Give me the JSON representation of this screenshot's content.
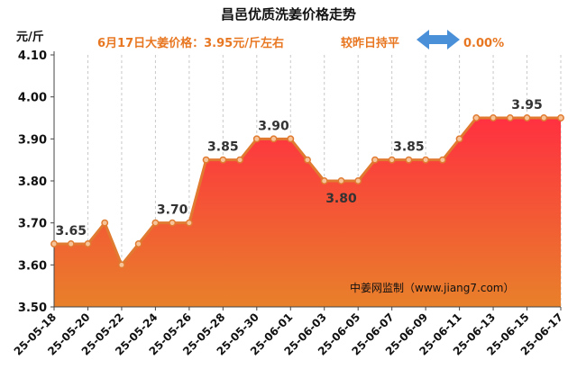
{
  "title": "昌邑优质洗姜价格走势",
  "subtitle_price": "6月17日大姜价格：3.95元/斤左右",
  "subtitle_compare": "较昨日持平",
  "change_text": "0.00%",
  "unit_label": "元/斤",
  "watermark": "中姜网监制（www.jiang7.com）",
  "colors": {
    "line": "#e07a30",
    "fill_top": "#ff3040",
    "fill_bottom": "#e8802a",
    "subtitle": "#e87722",
    "arrow": "#4a90d9"
  },
  "arrow_icon": "double-arrow-icon",
  "chart_data": {
    "type": "area",
    "title": "昌邑优质洗姜价格走势",
    "ylabel": "元/斤",
    "ylim": [
      3.5,
      4.1
    ],
    "yticks": [
      "3.50",
      "3.60",
      "3.70",
      "3.80",
      "3.90",
      "4.00",
      "4.10"
    ],
    "grid": "x-dashed",
    "x": [
      "25-05-18",
      "25-05-19",
      "25-05-20",
      "25-05-21",
      "25-05-22",
      "25-05-23",
      "25-05-24",
      "25-05-25",
      "25-05-26",
      "25-05-27",
      "25-05-28",
      "25-05-29",
      "25-05-30",
      "25-05-31",
      "25-06-01",
      "25-06-02",
      "25-06-03",
      "25-06-04",
      "25-06-05",
      "25-06-06",
      "25-06-07",
      "25-06-08",
      "25-06-09",
      "25-06-10",
      "25-06-11",
      "25-06-12",
      "25-06-13",
      "25-06-14",
      "25-06-15",
      "25-06-16",
      "25-06-17"
    ],
    "xtick_labels": [
      "25-05-18",
      "25-05-20",
      "25-05-22",
      "25-05-24",
      "25-05-26",
      "25-05-28",
      "25-05-30",
      "25-06-01",
      "25-06-03",
      "25-06-05",
      "25-06-07",
      "25-06-09",
      "25-06-11",
      "25-06-13",
      "25-06-15",
      "25-06-17"
    ],
    "values": [
      3.65,
      3.65,
      3.65,
      3.7,
      3.6,
      3.65,
      3.7,
      3.7,
      3.7,
      3.85,
      3.85,
      3.85,
      3.9,
      3.9,
      3.9,
      3.85,
      3.8,
      3.8,
      3.8,
      3.85,
      3.85,
      3.85,
      3.85,
      3.85,
      3.9,
      3.95,
      3.95,
      3.95,
      3.95,
      3.95,
      3.95
    ],
    "data_labels": [
      {
        "x": "25-05-19",
        "text": "3.65",
        "pos": "above"
      },
      {
        "x": "25-05-25",
        "text": "3.70",
        "pos": "above"
      },
      {
        "x": "25-05-28",
        "text": "3.85",
        "pos": "above"
      },
      {
        "x": "25-05-31",
        "text": "3.90",
        "pos": "above"
      },
      {
        "x": "25-06-04",
        "text": "3.80",
        "pos": "below"
      },
      {
        "x": "25-06-08",
        "text": "3.85",
        "pos": "above"
      },
      {
        "x": "25-06-15",
        "text": "3.95",
        "pos": "above"
      }
    ]
  }
}
